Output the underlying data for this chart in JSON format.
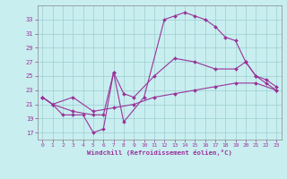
{
  "xlabel": "Windchill (Refroidissement éolien,°C)",
  "bg_color": "#c8eef0",
  "grid_color": "#9ecece",
  "line_color": "#993399",
  "ylim": [
    16,
    35
  ],
  "xlim": [
    -0.5,
    23.5
  ],
  "yticks": [
    17,
    19,
    21,
    23,
    25,
    27,
    29,
    31,
    33
  ],
  "xticks": [
    0,
    1,
    2,
    3,
    4,
    5,
    6,
    7,
    8,
    9,
    10,
    11,
    12,
    13,
    14,
    15,
    16,
    17,
    18,
    19,
    20,
    21,
    22,
    23
  ],
  "line1_x": [
    0,
    1,
    3,
    5,
    7,
    9,
    11,
    13,
    15,
    17,
    19,
    21,
    23
  ],
  "line1_y": [
    22,
    21,
    22,
    20,
    20.5,
    21,
    22,
    22.5,
    23,
    23.5,
    24,
    24,
    23
  ],
  "line2_x": [
    0,
    1,
    3,
    5,
    6,
    7,
    8,
    9,
    11,
    13,
    15,
    17,
    19,
    20,
    21,
    22,
    23
  ],
  "line2_y": [
    22,
    21,
    20,
    19.5,
    19.5,
    25.5,
    22.5,
    22,
    25,
    27.5,
    27,
    26,
    26,
    27,
    25,
    24.5,
    23.5
  ],
  "line3_x": [
    0,
    1,
    2,
    3,
    4,
    5,
    6,
    7,
    8,
    10,
    12,
    13,
    14,
    15,
    16,
    17,
    18,
    19,
    20,
    21,
    22,
    23
  ],
  "line3_y": [
    22,
    21,
    19.5,
    19.5,
    19.5,
    17,
    17.5,
    25.5,
    18.5,
    22,
    33,
    33.5,
    34,
    33.5,
    33,
    32,
    30.5,
    30,
    27,
    25,
    24,
    23
  ]
}
